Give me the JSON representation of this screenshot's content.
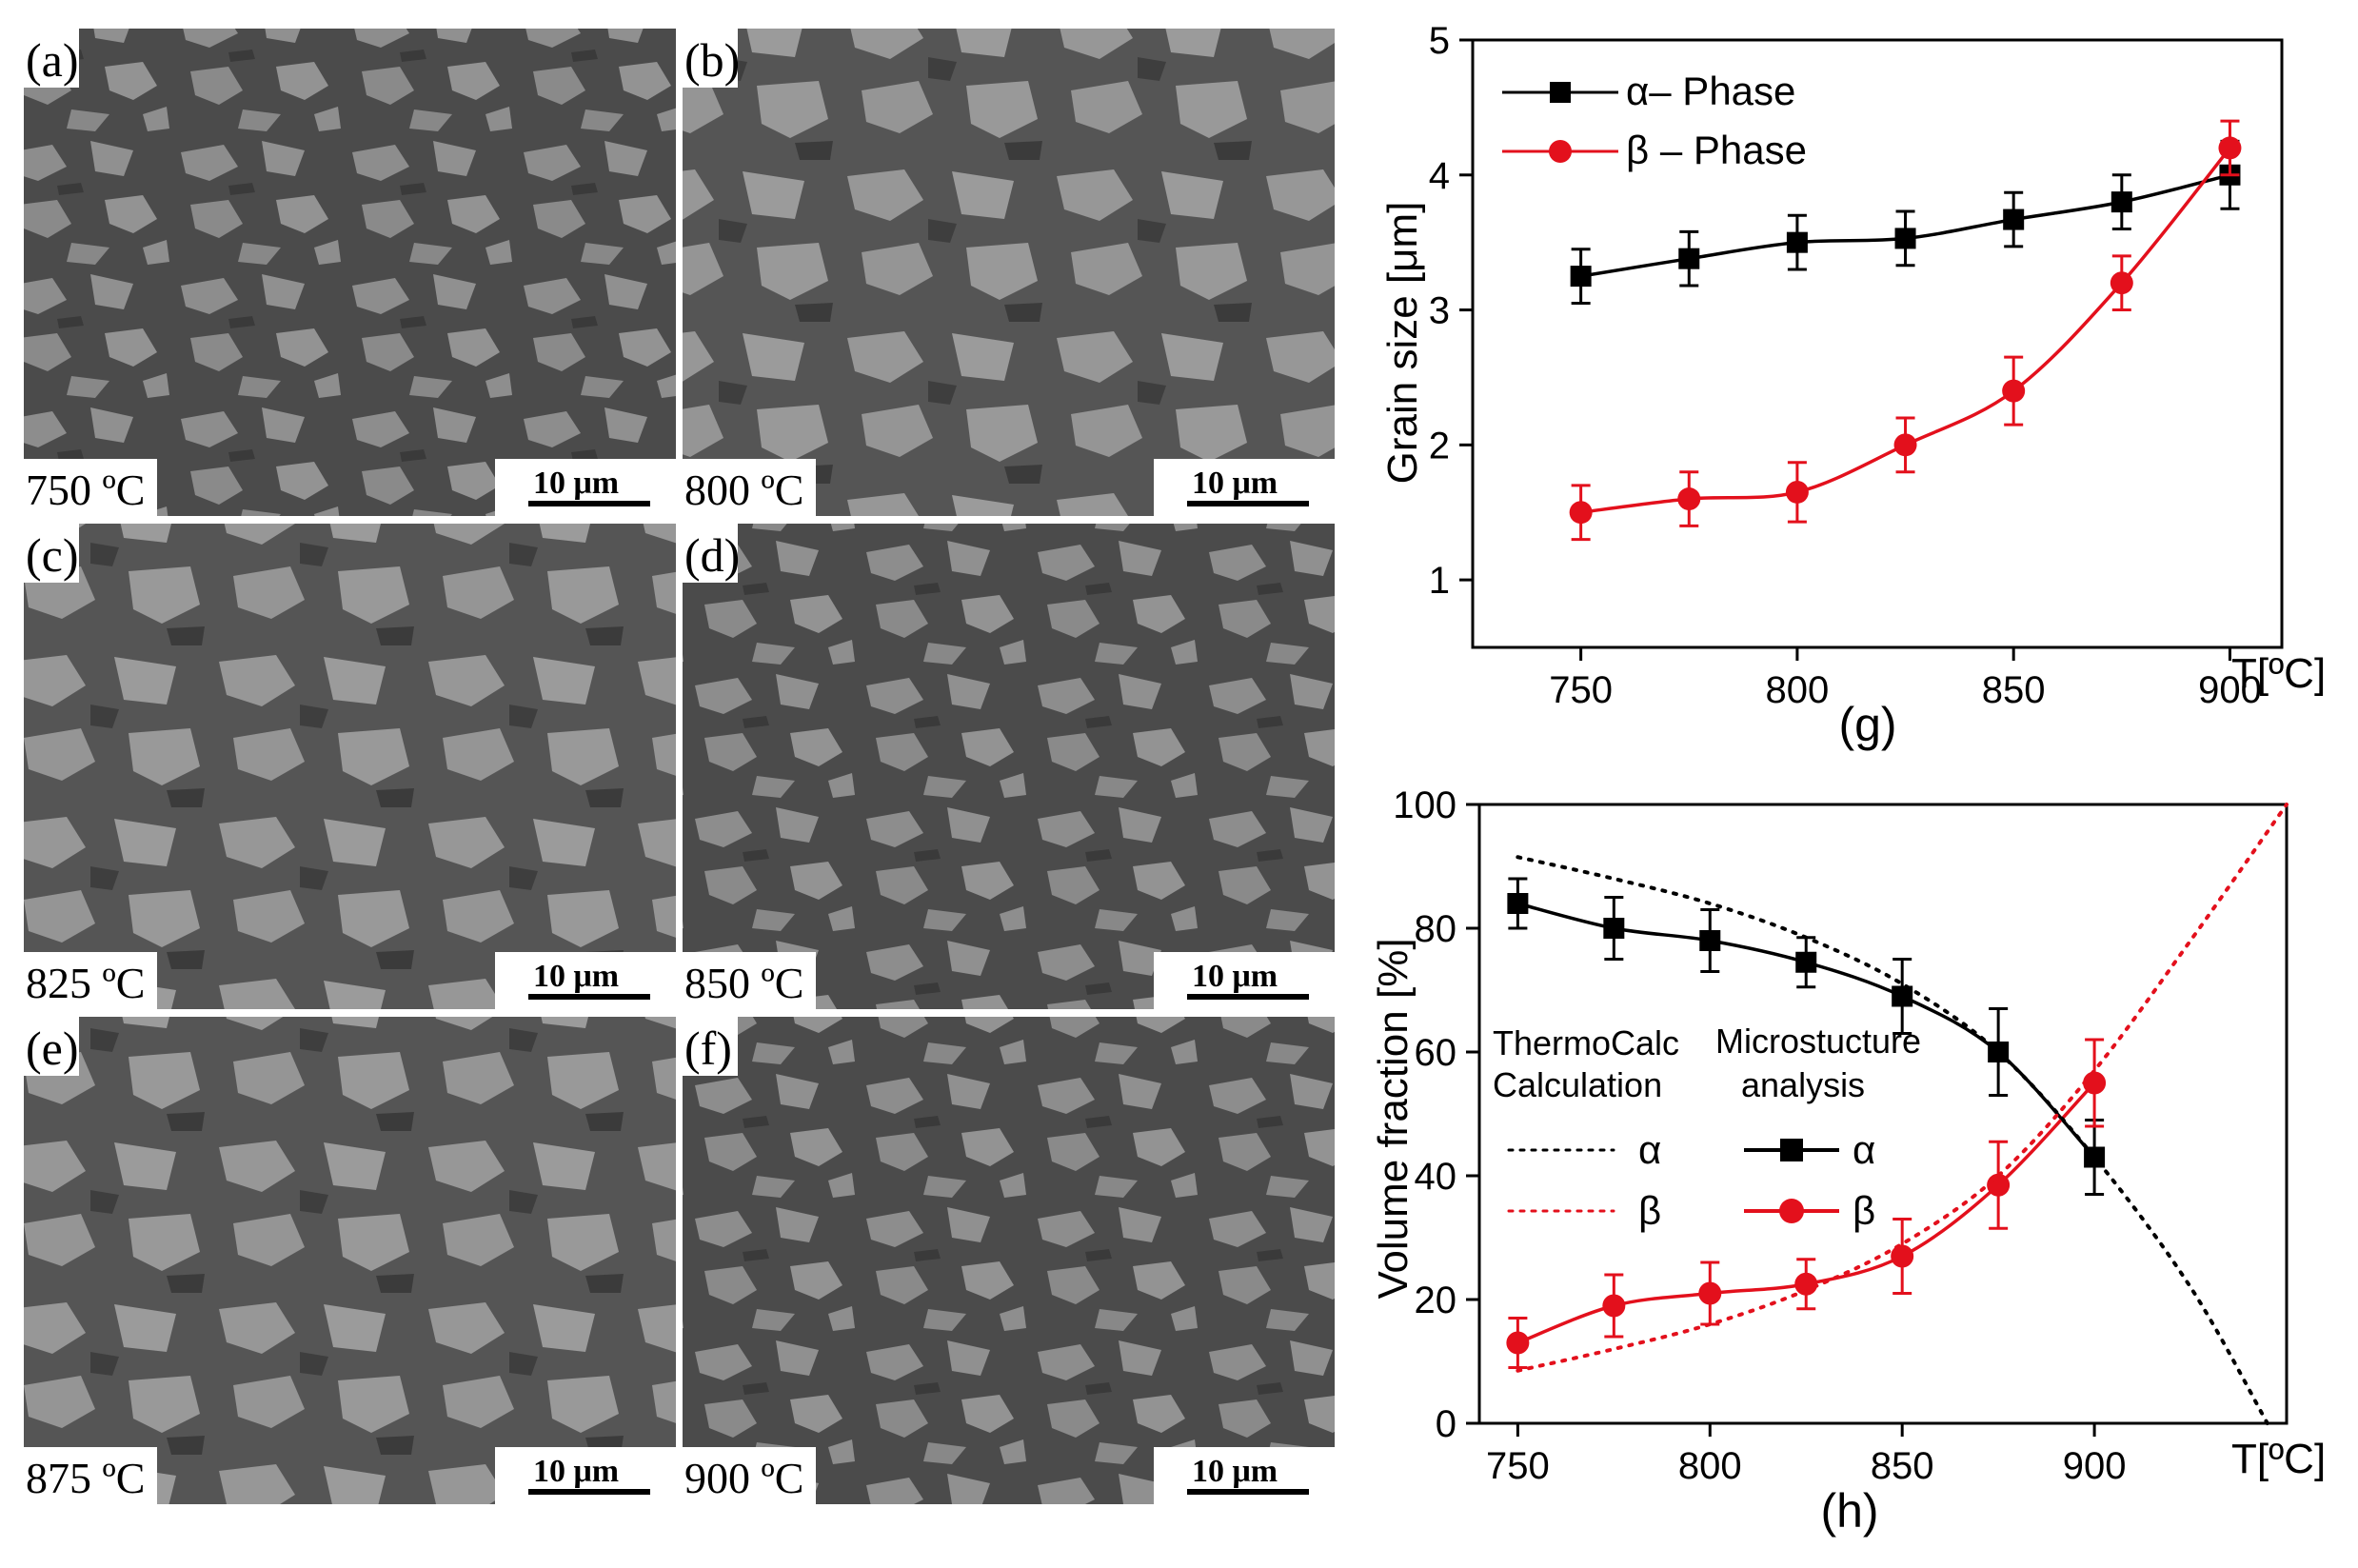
{
  "micrographs": [
    {
      "letter": "(a)",
      "temperature": "750 ºC",
      "scale": "10 μm"
    },
    {
      "letter": "(b)",
      "temperature": "800 ºC",
      "scale": "10 μm"
    },
    {
      "letter": "(c)",
      "temperature": "825 ºC",
      "scale": "10 μm"
    },
    {
      "letter": "(d)",
      "temperature": "850 ºC",
      "scale": "10 μm"
    },
    {
      "letter": "(e)",
      "temperature": "875 ºC",
      "scale": "10 μm"
    },
    {
      "letter": "(f)",
      "temperature": "900 ºC",
      "scale": "10 μm"
    }
  ],
  "chart_data": [
    {
      "id": "g",
      "type": "line",
      "panel_label": "(g)",
      "xlabel": "T[ºC]",
      "ylabel": "Grain size [μm]",
      "xlim": [
        725,
        912
      ],
      "ylim": [
        0.5,
        5
      ],
      "xticks": [
        750,
        800,
        850,
        900
      ],
      "yticks": [
        1,
        2,
        3,
        4,
        5
      ],
      "legend_position": "top-left",
      "colors": {
        "alpha": "#000000",
        "beta": "#e3101c"
      },
      "series": [
        {
          "name": "α– Phase",
          "marker": "square",
          "x": [
            750,
            775,
            800,
            825,
            850,
            875,
            900
          ],
          "y": [
            3.25,
            3.38,
            3.5,
            3.53,
            3.67,
            3.8,
            4.0
          ],
          "err": [
            0.2,
            0.2,
            0.2,
            0.2,
            0.2,
            0.2,
            0.25
          ]
        },
        {
          "name": "β – Phase",
          "marker": "circle",
          "x": [
            750,
            775,
            800,
            825,
            850,
            875,
            900
          ],
          "y": [
            1.5,
            1.6,
            1.65,
            2.0,
            2.4,
            3.2,
            4.2
          ],
          "err": [
            0.2,
            0.2,
            0.22,
            0.2,
            0.25,
            0.2,
            0.2
          ]
        }
      ]
    },
    {
      "id": "h",
      "type": "line",
      "panel_label": "(h)",
      "xlabel": "T[ºC]",
      "ylabel": "Volume fraction [%]",
      "xlim": [
        740,
        950
      ],
      "ylim": [
        0,
        100
      ],
      "xticks": [
        750,
        800,
        850,
        900
      ],
      "yticks": [
        0,
        20,
        40,
        60,
        80,
        100
      ],
      "colors": {
        "alpha": "#000000",
        "beta": "#e3101c"
      },
      "annotations": {
        "thermocalc_title": [
          "ThermoCalc",
          "Calculation"
        ],
        "micro_title": [
          "Microstucture",
          "analysis"
        ]
      },
      "legend": {
        "thermo_alpha": "α",
        "thermo_beta": "β",
        "micro_alpha": "α",
        "micro_beta": "β"
      },
      "series": [
        {
          "name": "α (Microstucture analysis)",
          "style": "solid",
          "marker": "square",
          "x": [
            750,
            775,
            800,
            825,
            850,
            875,
            900
          ],
          "y": [
            84,
            80,
            78,
            74.5,
            69,
            60,
            43
          ],
          "err": [
            4,
            5,
            5,
            4,
            6,
            7,
            6
          ]
        },
        {
          "name": "β (Microstucture analysis)",
          "style": "solid",
          "marker": "circle",
          "x": [
            750,
            775,
            800,
            825,
            850,
            875,
            900
          ],
          "y": [
            13,
            19,
            21,
            22.5,
            27,
            38.5,
            55
          ],
          "err": [
            4,
            5,
            5,
            4,
            6,
            7,
            7
          ]
        },
        {
          "name": "α (ThermoCalc Calculation)",
          "style": "dotted",
          "x": [
            750,
            775,
            800,
            825,
            850,
            875,
            900,
            925,
            945
          ],
          "y": [
            91.5,
            88,
            84,
            78.5,
            71,
            60,
            43,
            22,
            0
          ]
        },
        {
          "name": "β (ThermoCalc Calculation)",
          "style": "dotted",
          "x": [
            750,
            775,
            800,
            825,
            850,
            875,
            900,
            925,
            950
          ],
          "y": [
            8.5,
            12,
            16,
            21.5,
            29,
            40,
            57,
            78,
            100
          ]
        }
      ]
    }
  ]
}
